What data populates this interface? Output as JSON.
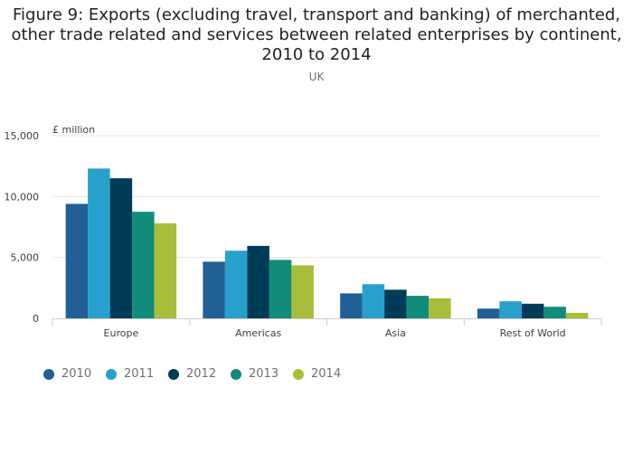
{
  "title": "Figure 9: Exports (excluding travel, transport and banking) of merchanted,\nother trade related and services between related enterprises by continent,\n2010 to 2014",
  "subtitle": "UK",
  "chart_data": {
    "type": "bar",
    "title": "Figure 9: Exports (excluding travel, transport and banking) of merchanted, other trade related and services between related enterprises by continent, 2010 to 2014",
    "subtitle": "UK",
    "unit_label": "£ million",
    "categories": [
      "Europe",
      "Americas",
      "Asia",
      "Rest of World"
    ],
    "ylim": [
      0,
      15000
    ],
    "yticks": [
      0,
      5000,
      10000,
      15000
    ],
    "ytick_labels": [
      "0",
      "5,000",
      "10,000",
      "15,000"
    ],
    "grid": true,
    "legend_position": "bottom-left",
    "series": [
      {
        "name": "2010",
        "color": "#206095",
        "values": [
          9400,
          4650,
          2050,
          800
        ]
      },
      {
        "name": "2011",
        "color": "#27a0cc",
        "values": [
          12300,
          5550,
          2800,
          1400
        ]
      },
      {
        "name": "2012",
        "color": "#003c57",
        "values": [
          11500,
          5950,
          2350,
          1200
        ]
      },
      {
        "name": "2013",
        "color": "#118c7b",
        "values": [
          8750,
          4800,
          1850,
          950
        ]
      },
      {
        "name": "2014",
        "color": "#a8bd3a",
        "values": [
          7800,
          4350,
          1650,
          450
        ]
      }
    ]
  }
}
